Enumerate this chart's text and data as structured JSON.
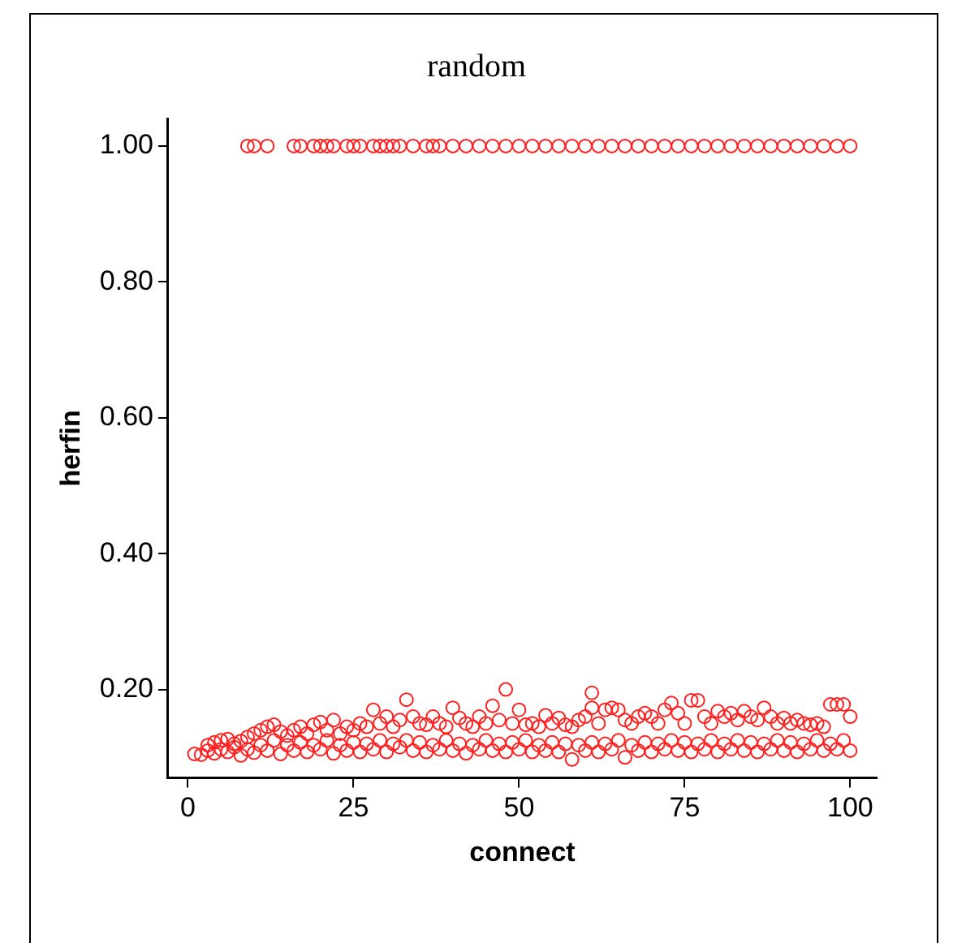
{
  "chart_data": {
    "type": "scatter",
    "title": "random",
    "xlabel": "connect",
    "ylabel": "herfin",
    "xlim": [
      -3,
      104
    ],
    "ylim": [
      0.07,
      1.04
    ],
    "xticks": [
      0,
      25,
      50,
      75,
      100
    ],
    "yticks": [
      {
        "value": 0.2,
        "label": "0.20"
      },
      {
        "value": 0.4,
        "label": "0.40"
      },
      {
        "value": 0.6,
        "label": "0.60"
      },
      {
        "value": 0.8,
        "label": "0.80"
      },
      {
        "value": 1,
        "label": "1.00"
      }
    ],
    "grid": false,
    "legend": false,
    "marker": "circle",
    "series": [
      {
        "color": "#ff2020",
        "x": [
          9,
          10,
          12,
          16,
          17,
          19,
          20,
          21,
          22,
          24,
          25,
          26,
          28,
          29,
          30,
          31,
          32,
          34,
          36,
          37,
          38,
          40,
          42,
          44,
          46,
          48,
          50,
          52,
          54,
          56,
          58,
          60,
          62,
          64,
          66,
          68,
          70,
          72,
          74,
          76,
          78,
          80,
          82,
          84,
          86,
          88,
          90,
          92,
          94,
          96,
          98,
          100
        ],
        "values": [
          1,
          1,
          1,
          1,
          1,
          1,
          1,
          1,
          1,
          1,
          1,
          1,
          1,
          1,
          1,
          1,
          1,
          1,
          1,
          1,
          1,
          1,
          1,
          1,
          1,
          1,
          1,
          1,
          1,
          1,
          1,
          1,
          1,
          1,
          1,
          1,
          1,
          1,
          1,
          1,
          1,
          1,
          1,
          1,
          1,
          1,
          1,
          1,
          1,
          1,
          1,
          1
        ]
      },
      {
        "color": "#ff2020",
        "x": [
          1,
          2,
          3,
          3,
          4,
          4,
          5,
          5,
          6,
          6,
          7,
          7,
          8,
          8,
          9,
          9,
          10,
          10,
          11,
          11,
          12,
          12,
          13,
          13,
          14,
          14,
          15,
          15,
          16,
          16,
          17,
          17,
          18,
          18,
          19,
          19,
          20,
          20,
          21,
          21,
          22,
          22,
          23,
          23,
          24,
          24,
          25,
          25,
          26,
          26,
          27,
          27,
          28,
          28,
          29,
          29,
          30,
          30,
          31,
          31,
          32,
          32,
          33,
          33,
          34,
          34,
          35,
          35,
          36,
          36,
          37,
          37,
          38,
          38,
          39,
          39,
          40,
          40,
          41,
          41,
          42,
          42,
          43,
          43,
          44,
          44,
          45,
          45,
          46,
          46,
          47,
          47,
          48,
          48,
          49,
          49,
          50,
          50,
          51,
          51,
          52,
          52,
          53,
          53,
          54,
          54,
          55,
          55,
          56,
          56,
          57,
          57,
          58,
          58,
          59,
          59,
          60,
          60,
          61,
          61,
          61,
          62,
          62,
          63,
          63,
          64,
          64,
          65,
          65,
          66,
          66,
          67,
          67,
          68,
          68,
          69,
          69,
          70,
          70,
          71,
          71,
          72,
          72,
          73,
          73,
          74,
          74,
          75,
          75,
          76,
          76,
          77,
          77,
          78,
          78,
          79,
          79,
          80,
          80,
          81,
          81,
          82,
          82,
          83,
          83,
          84,
          84,
          85,
          85,
          86,
          86,
          87,
          87,
          88,
          88,
          89,
          89,
          90,
          90,
          91,
          91,
          92,
          92,
          93,
          93,
          94,
          94,
          95,
          95,
          96,
          96,
          97,
          97,
          98,
          98,
          99,
          99,
          100,
          100
        ],
        "values": [
          0.105,
          0.104,
          0.11,
          0.118,
          0.106,
          0.122,
          0.112,
          0.125,
          0.108,
          0.127,
          0.115,
          0.12,
          0.103,
          0.124,
          0.112,
          0.13,
          0.107,
          0.135,
          0.118,
          0.14,
          0.11,
          0.145,
          0.125,
          0.148,
          0.105,
          0.138,
          0.118,
          0.132,
          0.11,
          0.14,
          0.122,
          0.145,
          0.108,
          0.135,
          0.118,
          0.148,
          0.112,
          0.152,
          0.125,
          0.14,
          0.106,
          0.155,
          0.118,
          0.135,
          0.11,
          0.145,
          0.122,
          0.14,
          0.108,
          0.15,
          0.12,
          0.145,
          0.112,
          0.17,
          0.125,
          0.15,
          0.108,
          0.16,
          0.12,
          0.145,
          0.115,
          0.155,
          0.125,
          0.185,
          0.11,
          0.16,
          0.122,
          0.15,
          0.108,
          0.148,
          0.118,
          0.16,
          0.112,
          0.15,
          0.125,
          0.145,
          0.11,
          0.173,
          0.12,
          0.158,
          0.106,
          0.15,
          0.118,
          0.145,
          0.112,
          0.16,
          0.125,
          0.15,
          0.11,
          0.176,
          0.12,
          0.155,
          0.108,
          0.2,
          0.122,
          0.15,
          0.112,
          0.17,
          0.125,
          0.148,
          0.108,
          0.15,
          0.118,
          0.145,
          0.11,
          0.162,
          0.122,
          0.15,
          0.108,
          0.158,
          0.12,
          0.148,
          0.097,
          0.145,
          0.118,
          0.155,
          0.11,
          0.16,
          0.122,
          0.195,
          0.173,
          0.108,
          0.15,
          0.12,
          0.17,
          0.112,
          0.173,
          0.125,
          0.17,
          0.1,
          0.155,
          0.118,
          0.15,
          0.11,
          0.16,
          0.122,
          0.165,
          0.108,
          0.16,
          0.12,
          0.15,
          0.112,
          0.17,
          0.125,
          0.18,
          0.11,
          0.165,
          0.122,
          0.15,
          0.108,
          0.184,
          0.12,
          0.184,
          0.112,
          0.16,
          0.125,
          0.15,
          0.108,
          0.168,
          0.12,
          0.16,
          0.112,
          0.165,
          0.125,
          0.155,
          0.11,
          0.168,
          0.122,
          0.16,
          0.108,
          0.155,
          0.12,
          0.173,
          0.112,
          0.16,
          0.125,
          0.15,
          0.11,
          0.158,
          0.122,
          0.15,
          0.108,
          0.155,
          0.12,
          0.15,
          0.112,
          0.148,
          0.125,
          0.15,
          0.11,
          0.145,
          0.12,
          0.178,
          0.112,
          0.178,
          0.125,
          0.178,
          0.11,
          0.16
        ]
      }
    ]
  }
}
